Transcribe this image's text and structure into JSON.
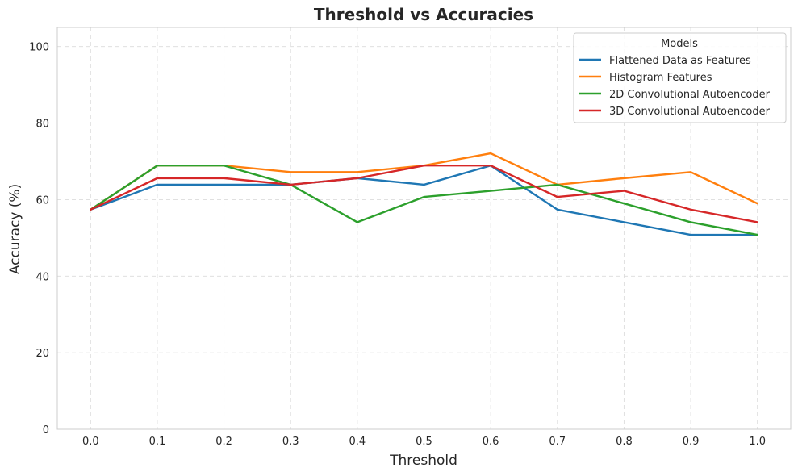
{
  "chart_data": {
    "type": "line",
    "title": "Threshold vs Accuracies",
    "xlabel": "Threshold",
    "ylabel": "Accuracy (%)",
    "x": [
      0.0,
      0.1,
      0.2,
      0.3,
      0.4,
      0.5,
      0.6,
      0.7,
      0.8,
      0.9,
      1.0
    ],
    "x_ticks": [
      "0.0",
      "0.1",
      "0.2",
      "0.3",
      "0.4",
      "0.5",
      "0.6",
      "0.7",
      "0.8",
      "0.9",
      "1.0"
    ],
    "y_ticks": [
      "0",
      "20",
      "40",
      "60",
      "80",
      "100"
    ],
    "xlim": [
      -0.05,
      1.05
    ],
    "ylim": [
      0,
      105
    ],
    "grid": true,
    "legend": {
      "title": "Models",
      "position": "top-right"
    },
    "series": [
      {
        "name": "Flattened Data as Features",
        "color": "#1f77b4",
        "values": [
          57.4,
          63.9,
          63.9,
          63.9,
          65.6,
          63.9,
          68.9,
          57.4,
          54.1,
          50.8,
          50.8
        ]
      },
      {
        "name": "Histogram Features",
        "color": "#ff7f0e",
        "values": [
          57.4,
          68.9,
          68.9,
          67.2,
          67.2,
          68.9,
          72.1,
          63.9,
          65.6,
          67.2,
          59.0
        ]
      },
      {
        "name": "2D Convolutional Autoencoder",
        "color": "#2ca02c",
        "values": [
          57.4,
          68.9,
          68.9,
          63.9,
          54.1,
          60.7,
          62.3,
          63.9,
          59.0,
          54.1,
          50.8
        ]
      },
      {
        "name": "3D Convolutional Autoencoder",
        "color": "#d62728",
        "values": [
          57.4,
          65.6,
          65.6,
          63.9,
          65.6,
          68.9,
          68.9,
          60.7,
          62.3,
          57.4,
          54.1
        ]
      }
    ]
  }
}
